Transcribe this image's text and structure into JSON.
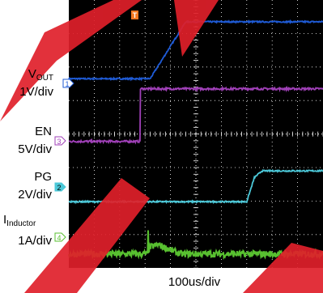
{
  "labels": {
    "vout_main": "V",
    "vout_sub": "OUT",
    "vout_scale": "1V/div",
    "en_main": "EN",
    "en_scale": "5V/div",
    "pg_main": "PG",
    "pg_scale": "2V/div",
    "ind_main": "I",
    "ind_sub": "Inductor",
    "ind_scale": "1A/div",
    "time_scale": "100us/div"
  },
  "markers": {
    "trigger": "T",
    "ch1": "1",
    "ch3": "3",
    "ch2": "2",
    "ch4": "4"
  },
  "colors": {
    "background": "#000000",
    "grid": "#ffffff",
    "vout": "#1f5bd6",
    "en": "#a040b8",
    "pg": "#4cc8d8",
    "inductor": "#58c030",
    "trigger": "#f07820",
    "watermark": "#e0202a"
  },
  "chart_data": {
    "type": "line",
    "grid_divisions": {
      "x": 10,
      "y": 8
    },
    "x_unit": "div",
    "y_unit": "div",
    "xlim": [
      0,
      10
    ],
    "ylim": [
      0,
      8
    ],
    "grid": true,
    "series": [
      {
        "name": "VOUT",
        "color_key": "vout",
        "x": [
          0,
          3.2,
          4.6,
          10
        ],
        "y": [
          5.65,
          5.65,
          7.35,
          7.35
        ],
        "noise": 0.02
      },
      {
        "name": "EN",
        "color_key": "en",
        "x": [
          0,
          2.8,
          2.81,
          10
        ],
        "y": [
          3.78,
          3.78,
          5.35,
          5.35
        ],
        "noise": 0.03
      },
      {
        "name": "PG",
        "color_key": "pg",
        "x": [
          0,
          7.0,
          7.3,
          7.6,
          10
        ],
        "y": [
          1.98,
          1.98,
          2.7,
          2.9,
          2.9
        ],
        "noise": 0.02
      },
      {
        "name": "IInductor",
        "color_key": "inductor",
        "x": [
          0,
          3.1,
          3.12,
          3.14,
          3.2,
          3.5,
          4.4,
          10
        ],
        "y": [
          0.42,
          0.42,
          1.05,
          0.55,
          0.62,
          0.7,
          0.42,
          0.42
        ],
        "noise": 0.1
      }
    ]
  }
}
